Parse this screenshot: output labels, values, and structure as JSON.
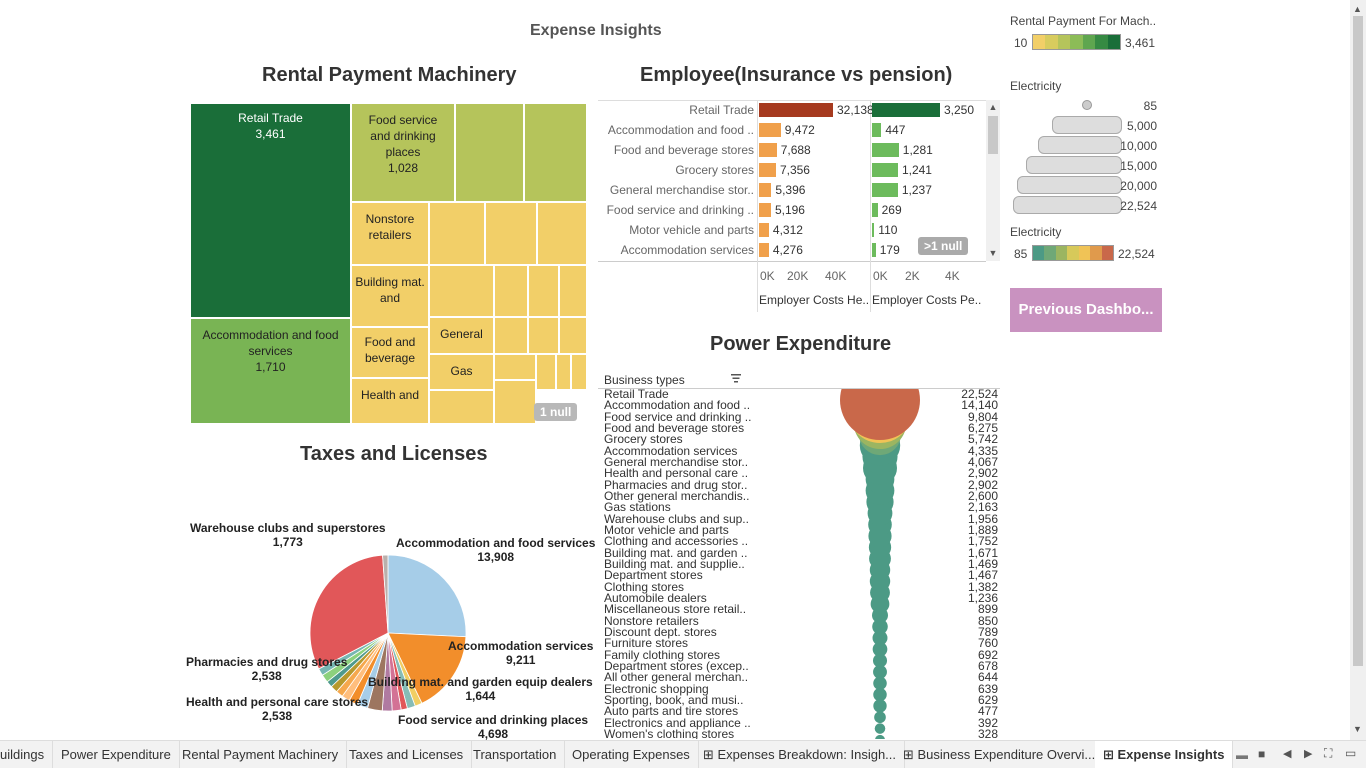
{
  "dashboard": {
    "title": "Expense Insights"
  },
  "treemap": {
    "title": "Rental Payment Machinery",
    "cells": [
      {
        "label": "Retail Trade",
        "value": "3,461"
      },
      {
        "label": "Food service and drinking places",
        "value": "1,028"
      },
      {
        "label": "Accommodation and food services",
        "value": "1,710"
      },
      {
        "label": "Nonstore retailers",
        "value": ""
      },
      {
        "label": "Building mat. and",
        "value": ""
      },
      {
        "label": "Food and beverage",
        "value": ""
      },
      {
        "label": "General",
        "value": ""
      },
      {
        "label": "Gas",
        "value": ""
      },
      {
        "label": "Health and",
        "value": ""
      }
    ],
    "null_badge": "1 null"
  },
  "employee": {
    "title": "Employee(Insurance vs pension)",
    "rows": [
      {
        "label": "Retail Trade",
        "health": 32138,
        "health_text": "32,138",
        "pension": 3250,
        "pension_text": "3,250"
      },
      {
        "label": "Accommodation and food ..",
        "health": 9472,
        "health_text": "9,472",
        "pension": 447,
        "pension_text": "447"
      },
      {
        "label": "Food and beverage stores",
        "health": 7688,
        "health_text": "7,688",
        "pension": 1281,
        "pension_text": "1,281"
      },
      {
        "label": "Grocery stores",
        "health": 7356,
        "health_text": "7,356",
        "pension": 1241,
        "pension_text": "1,241"
      },
      {
        "label": "General merchandise stor..",
        "health": 5396,
        "health_text": "5,396",
        "pension": 1237,
        "pension_text": "1,237"
      },
      {
        "label": "Food service and drinking ..",
        "health": 5196,
        "health_text": "5,196",
        "pension": 269,
        "pension_text": "269"
      },
      {
        "label": "Motor vehicle and parts",
        "health": 4312,
        "health_text": "4,312",
        "pension": 110,
        "pension_text": "110"
      },
      {
        "label": "Accommodation services",
        "health": 4276,
        "health_text": "4,276",
        "pension": 179,
        "pension_text": "179"
      }
    ],
    "axis_health_ticks": [
      "0K",
      "20K",
      "40K"
    ],
    "axis_pension_ticks": [
      "0K",
      "2K",
      "4K"
    ],
    "axis_health_label": "Employer Costs He..",
    "axis_pension_label": "Employer Costs Pe..",
    "null_badge": ">1 null",
    "colors": {
      "health_top": "#a63a1f",
      "health": "#f0a04b",
      "pension_top": "#1a6e39",
      "pension": "#6dbb5d"
    }
  },
  "pie": {
    "title": "Taxes and Licenses",
    "labels": [
      {
        "name": "Warehouse clubs and superstores",
        "value": "1,773"
      },
      {
        "name": "Accommodation and food services",
        "value": "13,908"
      },
      {
        "name": "Accommodation services",
        "value": "9,211"
      },
      {
        "name": "Building mat. and garden equip dealers",
        "value": "1,644"
      },
      {
        "name": "Food service and drinking places",
        "value": "4,698"
      },
      {
        "name": "Pharmacies and drug stores",
        "value": "2,538"
      },
      {
        "name": "Health and personal care stores",
        "value": "2,538"
      }
    ]
  },
  "power": {
    "title": "Power Expenditure",
    "column_header": "Business types",
    "sort_icon": "sort-icon",
    "rows": [
      {
        "label": "Retail Trade",
        "value": "22,524"
      },
      {
        "label": "Accommodation and food ..",
        "value": "14,140"
      },
      {
        "label": "Food service and drinking ..",
        "value": "9,804"
      },
      {
        "label": "Food and beverage stores",
        "value": "6,275"
      },
      {
        "label": "Grocery stores",
        "value": "5,742"
      },
      {
        "label": "Accommodation services",
        "value": "4,335"
      },
      {
        "label": "General merchandise stor..",
        "value": "4,067"
      },
      {
        "label": "Health and personal care ..",
        "value": "2,902"
      },
      {
        "label": "Pharmacies and drug stor..",
        "value": "2,902"
      },
      {
        "label": "Other general merchandis..",
        "value": "2,600"
      },
      {
        "label": "Gas stations",
        "value": "2,163"
      },
      {
        "label": "Warehouse clubs and sup..",
        "value": "1,956"
      },
      {
        "label": "Motor vehicle and parts",
        "value": "1,889"
      },
      {
        "label": "Clothing and accessories ..",
        "value": "1,752"
      },
      {
        "label": "Building mat. and garden ..",
        "value": "1,671"
      },
      {
        "label": "Building mat. and supplie..",
        "value": "1,469"
      },
      {
        "label": "Department stores",
        "value": "1,467"
      },
      {
        "label": "Clothing stores",
        "value": "1,382"
      },
      {
        "label": "Automobile dealers",
        "value": "1,236"
      },
      {
        "label": "Miscellaneous store retail..",
        "value": "899"
      },
      {
        "label": "Nonstore retailers",
        "value": "850"
      },
      {
        "label": "Discount dept. stores",
        "value": "789"
      },
      {
        "label": "Furniture stores",
        "value": "760"
      },
      {
        "label": "Family clothing stores",
        "value": "692"
      },
      {
        "label": "Department stores (excep..",
        "value": "678"
      },
      {
        "label": "All other general merchan..",
        "value": "644"
      },
      {
        "label": "Electronic shopping",
        "value": "639"
      },
      {
        "label": "Sporting, book, and musi..",
        "value": "629"
      },
      {
        "label": "Auto parts and tire stores",
        "value": "477"
      },
      {
        "label": "Electronics and appliance ..",
        "value": "392"
      },
      {
        "label": "Women's clothing stores",
        "value": "328"
      }
    ]
  },
  "legends": {
    "rental_title": "Rental Payment For Mach..",
    "rental_min": "10",
    "rental_max": "3,461",
    "electricity_size_title": "Electricity",
    "electricity_size_values": [
      "85",
      "5,000",
      "10,000",
      "15,000",
      "20,000",
      "22,524"
    ],
    "electricity_color_title": "Electricity",
    "electricity_color_min": "85",
    "electricity_color_max": "22,524"
  },
  "button": {
    "previous": "Previous Dashbo..."
  },
  "tabs": [
    {
      "label": "uildings",
      "active": false
    },
    {
      "label": "Power Expenditure",
      "active": false
    },
    {
      "label": "Rental Payment Machinery",
      "active": false
    },
    {
      "label": "Taxes and Licenses",
      "active": false
    },
    {
      "label": "Transportation",
      "active": false
    },
    {
      "label": "Operating Expenses",
      "active": false
    },
    {
      "label": "Expenses Breakdown: Insigh...",
      "active": false,
      "icon": "dashboard-icon"
    },
    {
      "label": "Business Expenditure Overvi...",
      "active": false,
      "icon": "dashboard-icon"
    },
    {
      "label": "Expense Insights",
      "active": true,
      "icon": "dashboard-icon"
    }
  ]
}
